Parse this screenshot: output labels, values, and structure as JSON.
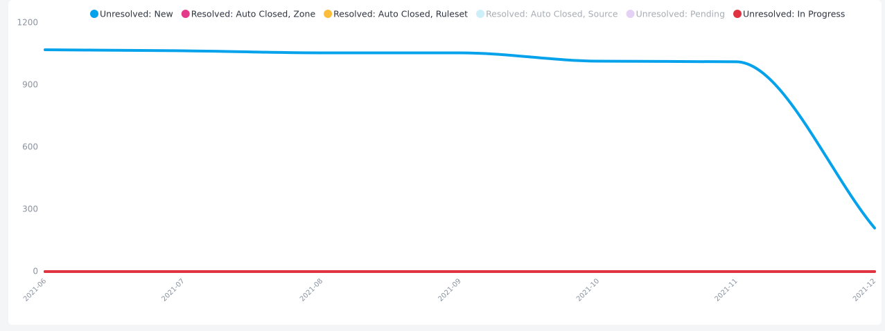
{
  "chart_data": {
    "type": "line",
    "x": [
      "2021-06",
      "2021-07",
      "2021-08",
      "2021-09",
      "2021-10",
      "2021-11",
      "2021-12"
    ],
    "series": [
      {
        "name": "Unresolved: New",
        "color": "#05a2ec",
        "values": [
          1070,
          1065,
          1055,
          1055,
          1015,
          1012,
          210
        ]
      },
      {
        "name": "Resolved: Auto Closed, Zone",
        "color": "#e33b8b",
        "values": [
          0,
          0,
          0,
          0,
          0,
          0,
          0
        ]
      },
      {
        "name": "Resolved: Auto Closed, Ruleset",
        "color": "#fdbc3a",
        "values": [
          0,
          0,
          0,
          0,
          0,
          0,
          0
        ]
      },
      {
        "name": "Resolved: Auto Closed, Source",
        "color": "#cdeff8",
        "hidden": true
      },
      {
        "name": "Unresolved: Pending",
        "color": "#e3d2f6",
        "hidden": true
      },
      {
        "name": "Unresolved: In Progress",
        "color": "#e03342",
        "values": [
          0,
          0,
          0,
          0,
          0,
          0,
          0
        ]
      }
    ],
    "ylim": [
      0,
      1200
    ],
    "yticks": [
      0,
      300,
      600,
      900,
      1200
    ],
    "grid": false,
    "smooth": true
  }
}
